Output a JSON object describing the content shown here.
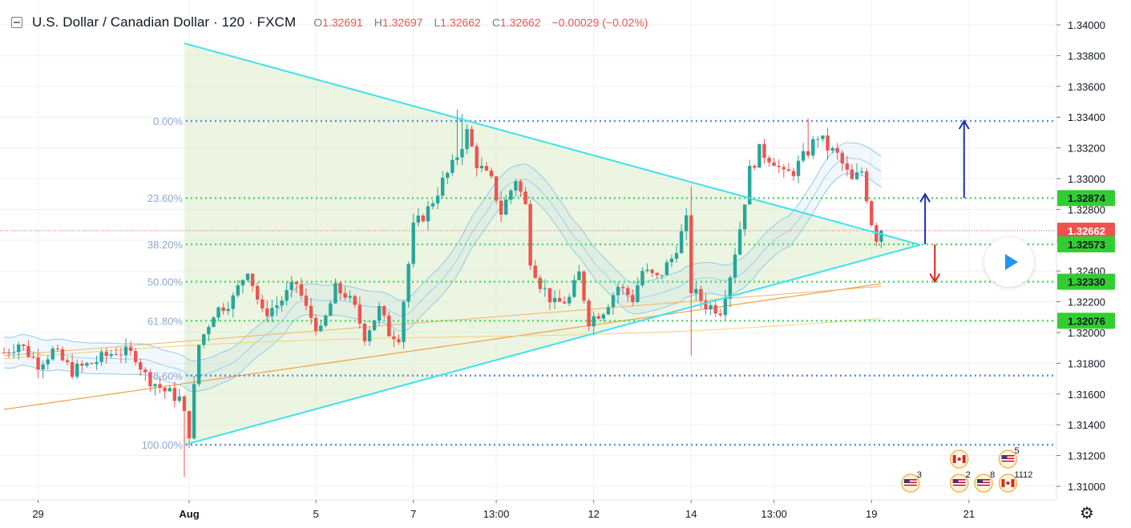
{
  "header": {
    "title": "U.S. Dollar / Canadian Dollar · 120 · FXCM",
    "open_label": "O",
    "open": "1.32691",
    "high_label": "H",
    "high": "1.32697",
    "low_label": "L",
    "low": "1.32662",
    "close_label": "C",
    "close": "1.32662",
    "change": "−0.00029 (−0.02%)"
  },
  "colors": {
    "up": "#26a69a",
    "down": "#ef5350",
    "trendline": "#40e0f0",
    "fib_green": "#4cd964",
    "fib_blue": "#5b8ed6",
    "price_badge_red": "#ef5350",
    "level_badge_green": "#32cd32",
    "arrow_blue": "#1f2fb4",
    "arrow_red": "#e0201a"
  },
  "chart_data": {
    "type": "candlestick",
    "symbol": "U.S. Dollar / Canadian Dollar",
    "interval": "120",
    "source": "FXCM",
    "ylim": [
      1.309,
      1.341
    ],
    "y_ticks": [
      "1.34000",
      "1.33800",
      "1.33600",
      "1.33400",
      "1.33200",
      "1.33000",
      "1.32800",
      "1.32600",
      "1.32400",
      "1.32200",
      "1.32000",
      "1.31800",
      "1.31600",
      "1.31400",
      "1.31200",
      "1.31000"
    ],
    "x_ticks": [
      {
        "label": "29",
        "bar": 7,
        "bold": false
      },
      {
        "label": "Aug",
        "bar": 38,
        "bold": true
      },
      {
        "label": "5",
        "bar": 64,
        "bold": false
      },
      {
        "label": "7",
        "bar": 84,
        "bold": false
      },
      {
        "label": "13:00",
        "bar": 101,
        "bold": false
      },
      {
        "label": "12",
        "bar": 121,
        "bold": false
      },
      {
        "label": "14",
        "bar": 141,
        "bold": false
      },
      {
        "label": "13:00",
        "bar": 158,
        "bold": false
      },
      {
        "label": "19",
        "bar": 178,
        "bold": false
      },
      {
        "label": "21",
        "bar": 198,
        "bold": false
      }
    ],
    "bar_count_total": 215,
    "candles": [],
    "fib_levels": [
      {
        "label": "0.00%",
        "price": 1.33375,
        "style": "blue"
      },
      {
        "label": "23.60%",
        "price": 1.32874,
        "style": "green"
      },
      {
        "label": "38.20%",
        "price": 1.32573,
        "style": "green"
      },
      {
        "label": "50.00%",
        "price": 1.3233,
        "style": "green"
      },
      {
        "label": "61.80%",
        "price": 1.32076,
        "style": "green"
      },
      {
        "label": "78.60%",
        "price": 1.3172,
        "style": "blue"
      },
      {
        "label": "100.00%",
        "price": 1.3127,
        "style": "blue"
      }
    ],
    "price_badges": [
      {
        "value": "1.32874",
        "color": "green"
      },
      {
        "value": "1.32662",
        "color": "red"
      },
      {
        "value": "1.32573",
        "color": "green"
      },
      {
        "value": "1.32330",
        "color": "green"
      },
      {
        "value": "1.32076",
        "color": "green"
      }
    ],
    "current_price": 1.32662,
    "triangle": {
      "upper": [
        {
          "bar": 37,
          "price": 1.3388
        },
        {
          "bar": 178,
          "price": 1.3264
        }
      ],
      "lower": [
        {
          "bar": 37,
          "price": 1.3127
        },
        {
          "bar": 188,
          "price": 1.3257
        }
      ],
      "apex": {
        "bar": 188,
        "price": 1.3257
      }
    },
    "arrows": [
      {
        "color": "blue",
        "bar": 189,
        "from": 1.32573,
        "to": 1.329
      },
      {
        "color": "red",
        "bar": 191,
        "from": 1.32573,
        "to": 1.3233
      },
      {
        "color": "blue",
        "bar": 197,
        "from": 1.32874,
        "to": 1.33375
      }
    ],
    "events": [
      {
        "flag": "us",
        "count": "3",
        "bar": 186,
        "row": 2
      },
      {
        "flag": "ca",
        "count": "",
        "bar": 196,
        "row": 1
      },
      {
        "flag": "us",
        "count": "2",
        "bar": 196,
        "row": 2
      },
      {
        "flag": "us",
        "count": "8",
        "bar": 201,
        "row": 2
      },
      {
        "flag": "us",
        "count": "5",
        "bar": 206,
        "row": 1
      },
      {
        "flag": "ca",
        "count": "1112",
        "bar": 206,
        "row": 2
      }
    ]
  }
}
